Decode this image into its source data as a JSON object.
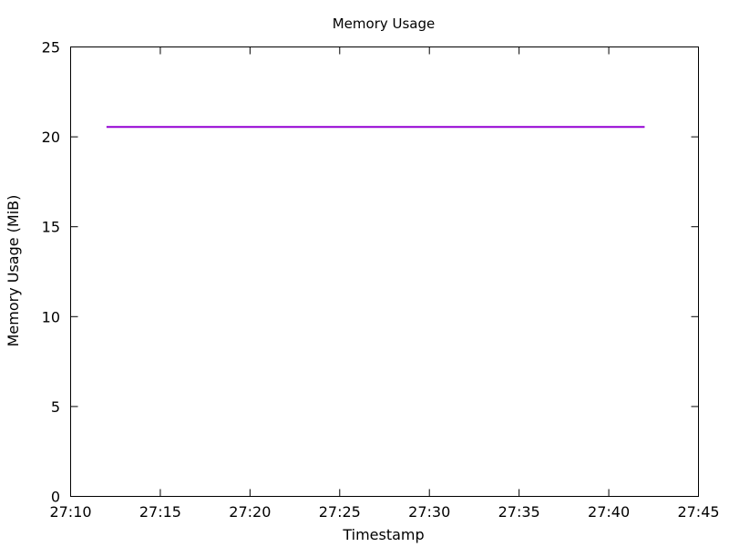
{
  "chart_data": {
    "type": "line",
    "title": "Memory Usage",
    "xlabel": "Timestamp",
    "ylabel": "Memory Usage (MiB)",
    "xlim": [
      "27:10",
      "27:45"
    ],
    "ylim": [
      0,
      25
    ],
    "x_ticks": [
      "27:10",
      "27:15",
      "27:20",
      "27:25",
      "27:30",
      "27:35",
      "27:40",
      "27:45"
    ],
    "y_ticks": [
      "0",
      "5",
      "10",
      "15",
      "20",
      "25"
    ],
    "grid": false,
    "series": [
      {
        "color": "#9400d3",
        "x": [
          "27:12",
          "27:42"
        ],
        "y": [
          20.55,
          20.55
        ]
      }
    ]
  }
}
